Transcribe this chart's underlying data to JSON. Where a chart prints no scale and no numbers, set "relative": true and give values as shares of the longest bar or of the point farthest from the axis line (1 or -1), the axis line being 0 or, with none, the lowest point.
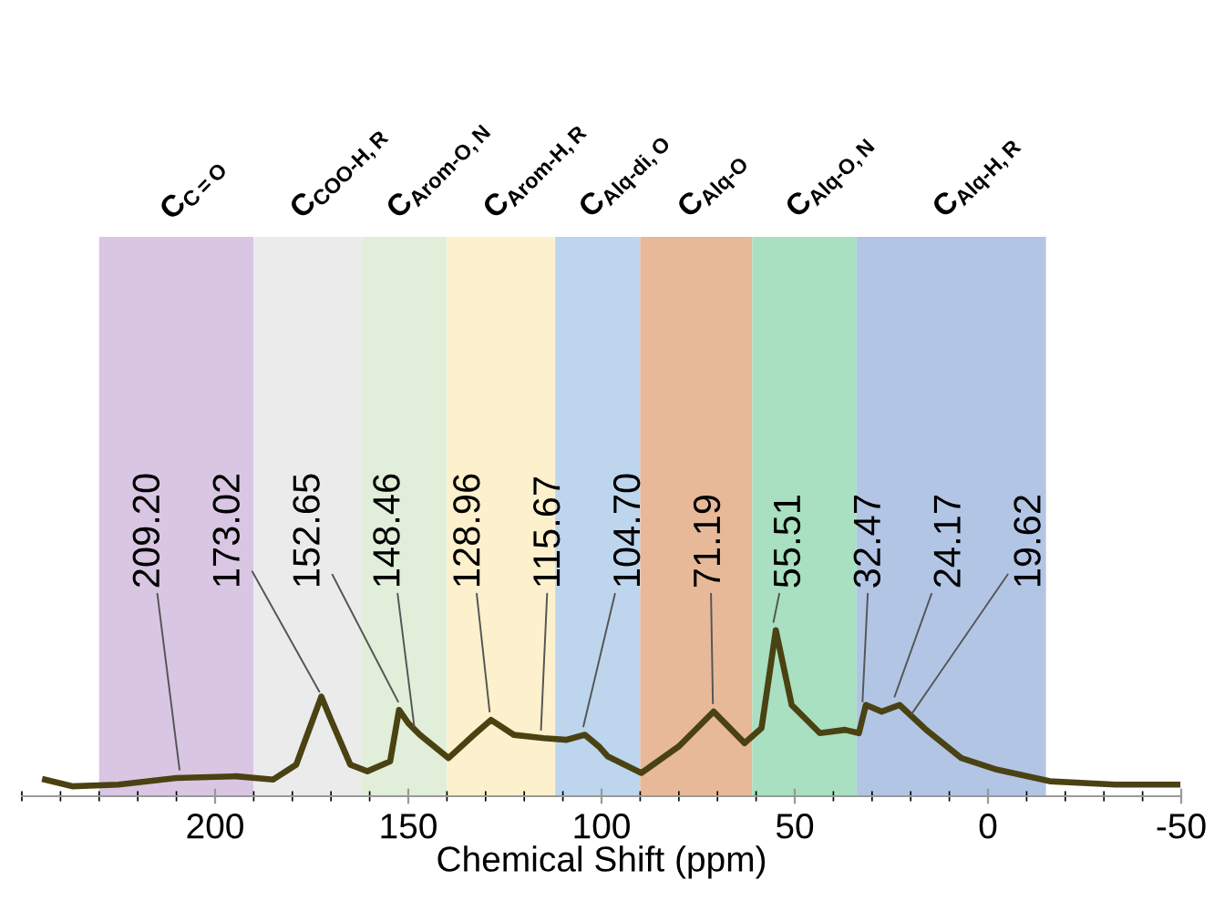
{
  "chart_data": {
    "type": "line",
    "xlabel": "Chemical Shift (ppm)",
    "relative": true,
    "tick_labels": "x",
    "grid": false,
    "legend": false,
    "marker": "none",
    "line_style": "solid",
    "xlim": [
      250,
      -50
    ],
    "xticks": [
      200,
      150,
      100,
      50,
      0,
      -50
    ],
    "series": [
      {
        "color": "#4a4212",
        "x": [
          244,
          237,
          225,
          210,
          194.5,
          185,
          179,
          176,
          172.5,
          170,
          165,
          160.6,
          154.7,
          152.4,
          150,
          147,
          139.6,
          133,
          128.6,
          122.7,
          115,
          109,
          104.3,
          100.7,
          98.4,
          89.7,
          80,
          71,
          63,
          58.6,
          54.9,
          50.8,
          43.5,
          37,
          33.4,
          31.6,
          27.5,
          22.9,
          16,
          6.9,
          -2.3,
          -16,
          -33,
          -49
        ],
        "values": [
          0.1,
          0.06,
          0.07,
          0.11,
          0.12,
          0.1,
          0.19,
          0.38,
          0.6,
          0.46,
          0.19,
          0.15,
          0.21,
          0.52,
          0.44,
          0.37,
          0.23,
          0.37,
          0.46,
          0.37,
          0.35,
          0.34,
          0.37,
          0.3,
          0.24,
          0.14,
          0.3,
          0.51,
          0.32,
          0.41,
          1.0,
          0.55,
          0.38,
          0.4,
          0.38,
          0.55,
          0.51,
          0.55,
          0.4,
          0.23,
          0.16,
          0.09,
          0.07,
          0.07
        ]
      }
    ],
    "bands": [
      {
        "axis": "x",
        "from": 230,
        "to": 190,
        "label": "C$_{C=O}$",
        "color": "#d9c6e3"
      },
      {
        "axis": "x",
        "from": 190,
        "to": 162,
        "label": "C$_{COO-H,R}$",
        "color": "#ebebeb"
      },
      {
        "axis": "x",
        "from": 162,
        "to": 140,
        "label": "C$_{Arom-O,N}$",
        "color": "#e1eed9"
      },
      {
        "axis": "x",
        "from": 140,
        "to": 112,
        "label": "C$_{Arom-H,R}$",
        "color": "#fdf0cc"
      },
      {
        "axis": "x",
        "from": 112,
        "to": 90,
        "label": "C$_{Alq-di,O}$",
        "color": "#bdd6ed"
      },
      {
        "axis": "x",
        "from": 90,
        "to": 61,
        "label": "C$_{Alq-O}$",
        "color": "#e7b999"
      },
      {
        "axis": "x",
        "from": 61,
        "to": 34,
        "label": "C$_{Alq-O,N}$",
        "color": "#a8e0c1"
      },
      {
        "axis": "x",
        "from": 34,
        "to": -15,
        "label": "C$_{Alq-H,R}$",
        "color": "#b2c5e5"
      }
    ],
    "annotations": [
      {
        "text": "209.20",
        "x": 209.2,
        "y": 0.11
      },
      {
        "text": "173.02",
        "x": 173.02,
        "y": 0.58
      },
      {
        "text": "152.65",
        "x": 152.65,
        "y": 0.52
      },
      {
        "text": "148.46",
        "x": 148.46,
        "y": 0.37
      },
      {
        "text": "128.96",
        "x": 128.96,
        "y": 0.46
      },
      {
        "text": "115.67",
        "x": 115.67,
        "y": 0.35
      },
      {
        "text": "104.70",
        "x": 104.7,
        "y": 0.37
      },
      {
        "text": "71.19",
        "x": 71.19,
        "y": 0.51
      },
      {
        "text": "55.51",
        "x": 55.51,
        "y": 1.0
      },
      {
        "text": "32.47",
        "x": 32.47,
        "y": 0.52
      },
      {
        "text": "24.17",
        "x": 24.17,
        "y": 0.55
      },
      {
        "text": "19.62",
        "x": 19.62,
        "y": 0.45
      }
    ]
  }
}
